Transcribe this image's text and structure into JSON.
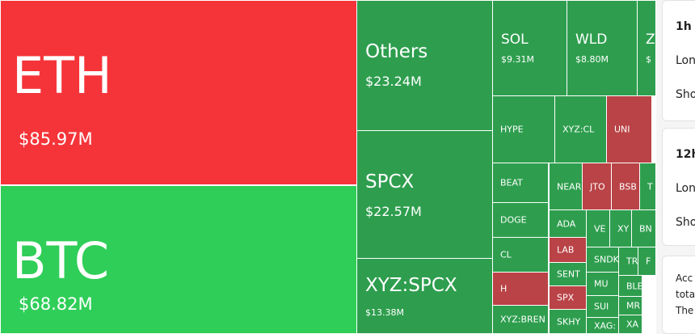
{
  "treemap": {
    "tiles": [
      {
        "label": "ETH",
        "value": "$85.97M"
      },
      {
        "label": "BTC",
        "value": "$68.82M"
      },
      {
        "label": "Others",
        "value": "$23.24M"
      },
      {
        "label": "SPCX",
        "value": "$22.57M"
      },
      {
        "label": "XYZ:SPCX",
        "value": "$13.38M"
      },
      {
        "label": "SOL",
        "value": "$9.31M"
      },
      {
        "label": "WLD",
        "value": "$8.80M"
      },
      {
        "label": "Z",
        "value": "$"
      },
      {
        "label": "HYPE"
      },
      {
        "label": "XYZ:CL"
      },
      {
        "label": "UNI"
      },
      {
        "label": "BEAT"
      },
      {
        "label": "DOGE"
      },
      {
        "label": "CL"
      },
      {
        "label": "H"
      },
      {
        "label": "XYZ:BREN"
      },
      {
        "label": "NEAR"
      },
      {
        "label": "JTO"
      },
      {
        "label": "BSB"
      },
      {
        "label": "T"
      },
      {
        "label": "ADA"
      },
      {
        "label": "VE"
      },
      {
        "label": "XY"
      },
      {
        "label": "BN"
      },
      {
        "label": "LAB"
      },
      {
        "label": "SENT"
      },
      {
        "label": "SPX"
      },
      {
        "label": "SKHY"
      },
      {
        "label": "SNDK"
      },
      {
        "label": "MU"
      },
      {
        "label": "SUI"
      },
      {
        "label": "XAG:"
      },
      {
        "label": "TR"
      },
      {
        "label": "F"
      },
      {
        "label": "BLE"
      },
      {
        "label": "MR"
      },
      {
        "label": "XA"
      }
    ]
  },
  "panel": {
    "cards": [
      {
        "title": "1h",
        "lines": [
          "Lon",
          "Sho"
        ]
      },
      {
        "title": "12h",
        "lines": [
          "Lon",
          "Sho"
        ]
      },
      {
        "lines": [
          "Acc",
          "tota",
          "The"
        ]
      }
    ]
  }
}
